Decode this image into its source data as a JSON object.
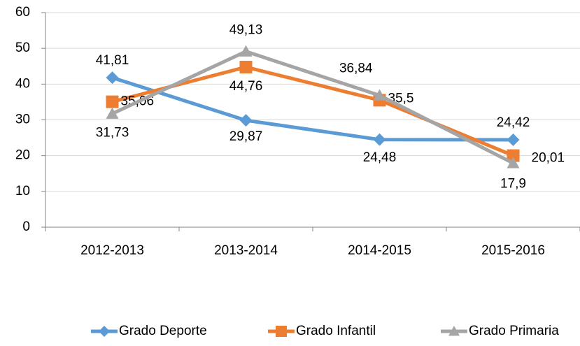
{
  "chart_data": {
    "type": "line",
    "categories": [
      "2012-2013",
      "2013-2014",
      "2014-2015",
      "2015-2016"
    ],
    "series": [
      {
        "name": "Grado Deporte",
        "color": "#5b9bd5",
        "marker": "diamond",
        "values": [
          41.81,
          29.87,
          24.48,
          24.42
        ],
        "value_labels": [
          "41,81",
          "29,87",
          "24,48",
          "24,42"
        ]
      },
      {
        "name": "Grado Infantil",
        "color": "#ed7d31",
        "marker": "square",
        "values": [
          35.06,
          44.76,
          35.5,
          20.01
        ],
        "value_labels": [
          "35,06",
          "44,76",
          "35,5",
          "20,01"
        ]
      },
      {
        "name": "Grado Primaria",
        "color": "#a5a5a5",
        "marker": "triangle",
        "values": [
          31.73,
          49.13,
          36.84,
          17.9
        ],
        "value_labels": [
          "31,73",
          "49,13",
          "36,84",
          "17,9"
        ]
      }
    ],
    "ylim": [
      0,
      60
    ],
    "yticks": [
      0,
      10,
      20,
      30,
      40,
      50,
      60
    ],
    "grid": true,
    "legend": "bottom"
  }
}
